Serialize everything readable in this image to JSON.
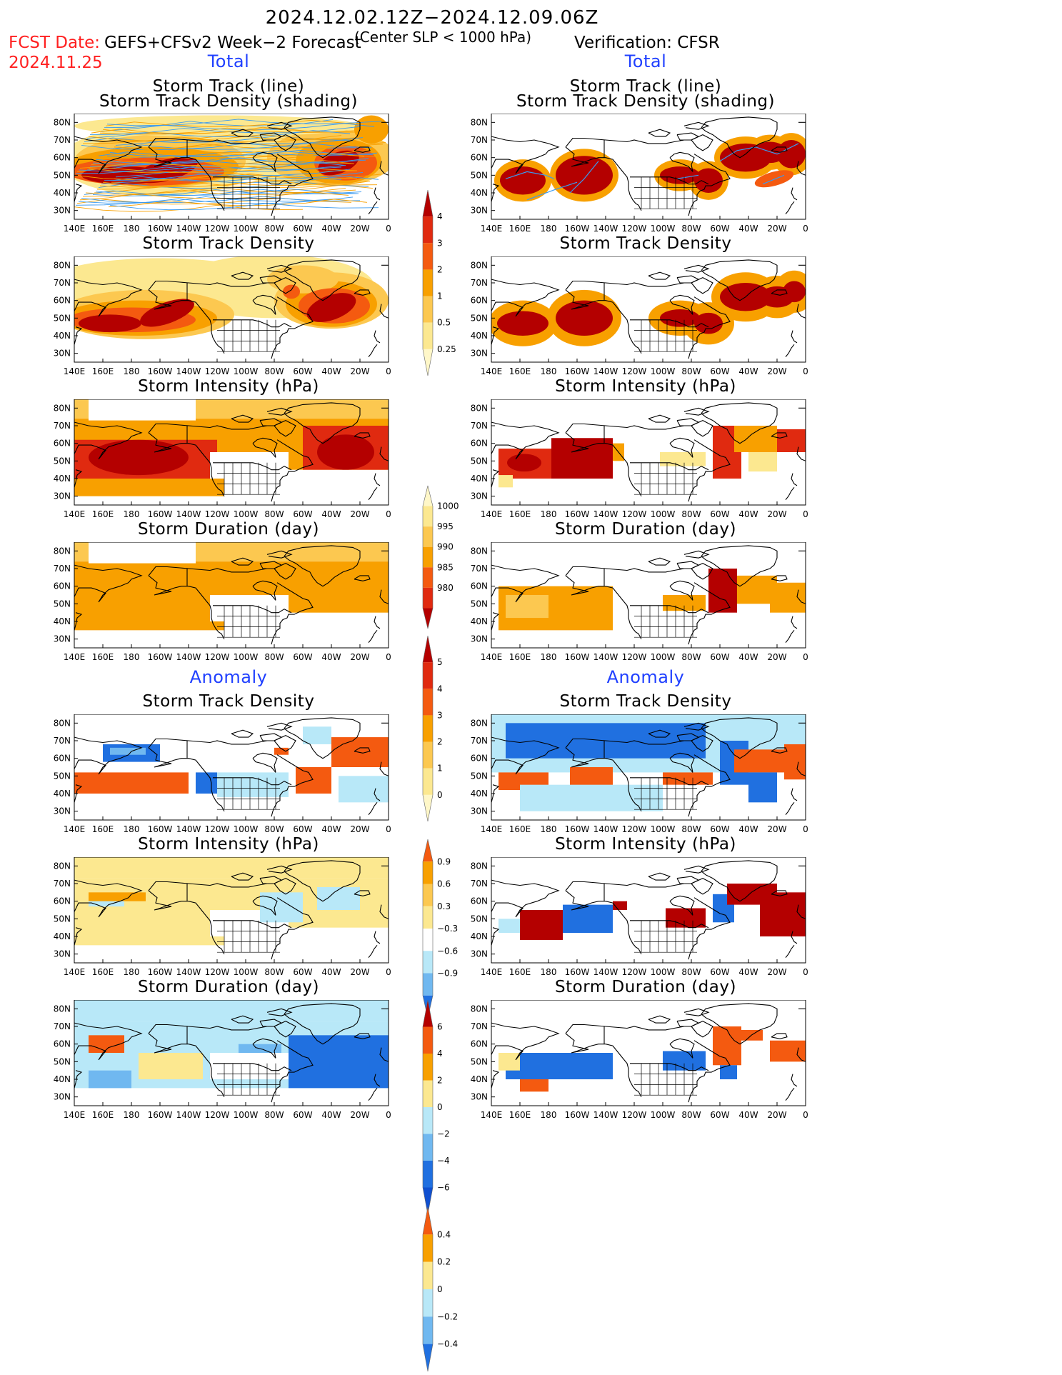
{
  "header": {
    "period": "2024.12.02.12Z−2024.12.09.06Z",
    "fcst_date_label": "FCST Date:",
    "fcst_date": "2024.11.25",
    "model": "GEFS+CFSv2 Week−2 Forecast",
    "criterion": "(Center SLP < 1000 hPa)",
    "verification": "Verification: CFSR"
  },
  "sections": {
    "total": "Total",
    "anomaly": "Anomaly"
  },
  "panel_titles": {
    "track_line": "Storm Track (line)",
    "track_shading": "Storm Track Density (shading)",
    "density": "Storm Track Density",
    "intensity": "Storm Intensity (hPa)",
    "duration": "Storm Duration (day)"
  },
  "axes": {
    "lon_labels": [
      "140E",
      "160E",
      "180",
      "160W",
      "140W",
      "120W",
      "100W",
      "80W",
      "60W",
      "40W",
      "20W",
      "0"
    ],
    "lat_labels": [
      "80N",
      "70N",
      "60N",
      "50N",
      "40N",
      "30N"
    ]
  },
  "colorbars": {
    "density_total": [
      "4",
      "3",
      "2",
      "1",
      "0.5",
      "0.25"
    ],
    "intensity_total": [
      "1000",
      "995",
      "990",
      "985",
      "980"
    ],
    "duration_total": [
      "5",
      "4",
      "3",
      "2",
      "1",
      "0"
    ],
    "density_anom": [
      "0.9",
      "0.6",
      "0.3",
      "−0.3",
      "−0.6",
      "−0.9"
    ],
    "intensity_anom": [
      "6",
      "4",
      "2",
      "0",
      "−2",
      "−4",
      "−6"
    ],
    "duration_anom": [
      "0.4",
      "0.2",
      "0",
      "−0.2",
      "−0.4"
    ]
  },
  "colors": {
    "dark_red": "#b40000",
    "red": "#e02a10",
    "orange_red": "#f45a10",
    "orange": "#f8a000",
    "light_orange": "#fcc850",
    "yellow": "#fce890",
    "pale": "#fff7c8",
    "light_blue": "#b8e8f8",
    "mid_blue": "#70b8f0",
    "blue": "#2070e0",
    "track_blue": "#3a9af0"
  }
}
